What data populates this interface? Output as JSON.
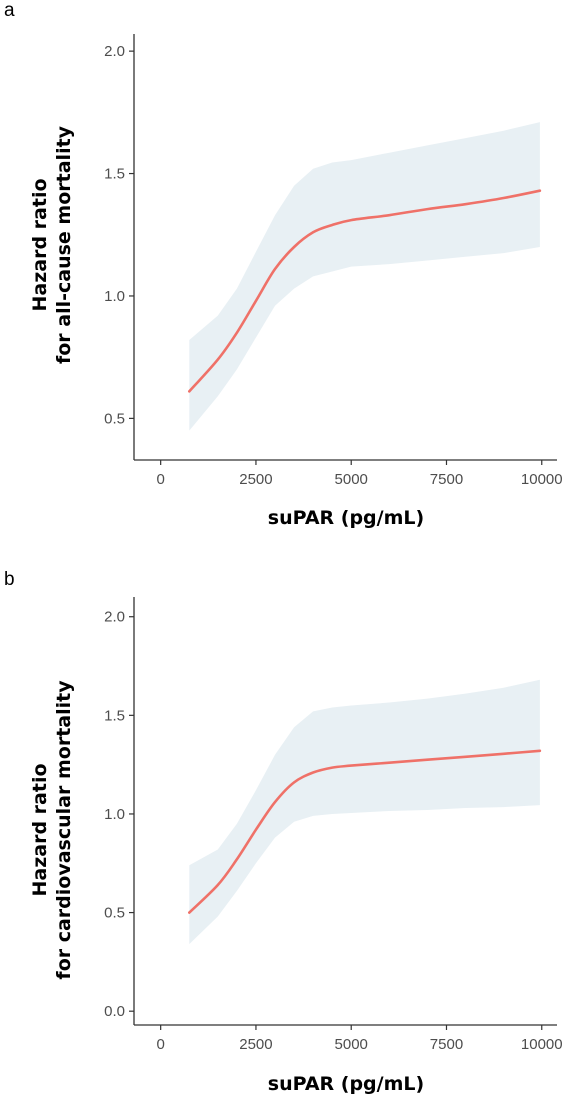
{
  "chart_data": [
    {
      "type": "line",
      "panel_label": "a",
      "xlabel": "suPAR (pg/mL)",
      "ylabel_line1": "Hazard ratio",
      "ylabel_line2": "for all-cause mortality",
      "xlim": [
        -700,
        10400
      ],
      "ylim": [
        0.33,
        2.07
      ],
      "x_ticks": [
        0,
        2500,
        5000,
        7500,
        10000
      ],
      "y_ticks": [
        0.5,
        1.0,
        1.5,
        2.0
      ],
      "x_tick_labels": [
        "0",
        "2500",
        "5000",
        "7500",
        "10000"
      ],
      "y_tick_labels": [
        "0.5",
        "1.0",
        "1.5",
        "2.0"
      ],
      "grid": false,
      "line_color": "#ef7168",
      "band_color": "#e8f0f4",
      "series": [
        {
          "x": [
            750,
            1500,
            2000,
            2500,
            3000,
            3500,
            4000,
            4500,
            5000,
            6000,
            7000,
            8000,
            9000,
            9950
          ],
          "y": [
            0.61,
            0.74,
            0.85,
            0.98,
            1.11,
            1.2,
            1.26,
            1.29,
            1.31,
            1.33,
            1.355,
            1.375,
            1.4,
            1.43
          ],
          "lower": [
            0.45,
            0.59,
            0.7,
            0.83,
            0.96,
            1.03,
            1.08,
            1.1,
            1.12,
            1.13,
            1.145,
            1.16,
            1.175,
            1.2
          ],
          "upper": [
            0.82,
            0.92,
            1.03,
            1.18,
            1.33,
            1.45,
            1.52,
            1.545,
            1.555,
            1.585,
            1.615,
            1.645,
            1.675,
            1.71
          ]
        }
      ]
    },
    {
      "type": "line",
      "panel_label": "b",
      "xlabel": "suPAR (pg/mL)",
      "ylabel_line1": "Hazard ratio",
      "ylabel_line2": "for cardiovascular mortality",
      "xlim": [
        -700,
        10400
      ],
      "ylim": [
        -0.07,
        2.1
      ],
      "x_ticks": [
        0,
        2500,
        5000,
        7500,
        10000
      ],
      "y_ticks": [
        0.0,
        0.5,
        1.0,
        1.5,
        2.0
      ],
      "x_tick_labels": [
        "0",
        "2500",
        "5000",
        "7500",
        "10000"
      ],
      "y_tick_labels": [
        "0.0",
        "0.5",
        "1.0",
        "1.5",
        "2.0"
      ],
      "grid": false,
      "line_color": "#ef7168",
      "band_color": "#e8f0f4",
      "series": [
        {
          "x": [
            750,
            1500,
            2000,
            2500,
            3000,
            3500,
            4000,
            4500,
            5000,
            6000,
            7000,
            8000,
            9000,
            9950
          ],
          "y": [
            0.5,
            0.64,
            0.77,
            0.92,
            1.06,
            1.16,
            1.21,
            1.235,
            1.245,
            1.26,
            1.275,
            1.29,
            1.305,
            1.32
          ],
          "lower": [
            0.34,
            0.48,
            0.61,
            0.75,
            0.88,
            0.96,
            0.99,
            1.0,
            1.005,
            1.015,
            1.02,
            1.03,
            1.035,
            1.045
          ],
          "upper": [
            0.74,
            0.82,
            0.95,
            1.12,
            1.3,
            1.44,
            1.52,
            1.54,
            1.55,
            1.565,
            1.585,
            1.61,
            1.64,
            1.68
          ]
        }
      ]
    }
  ]
}
